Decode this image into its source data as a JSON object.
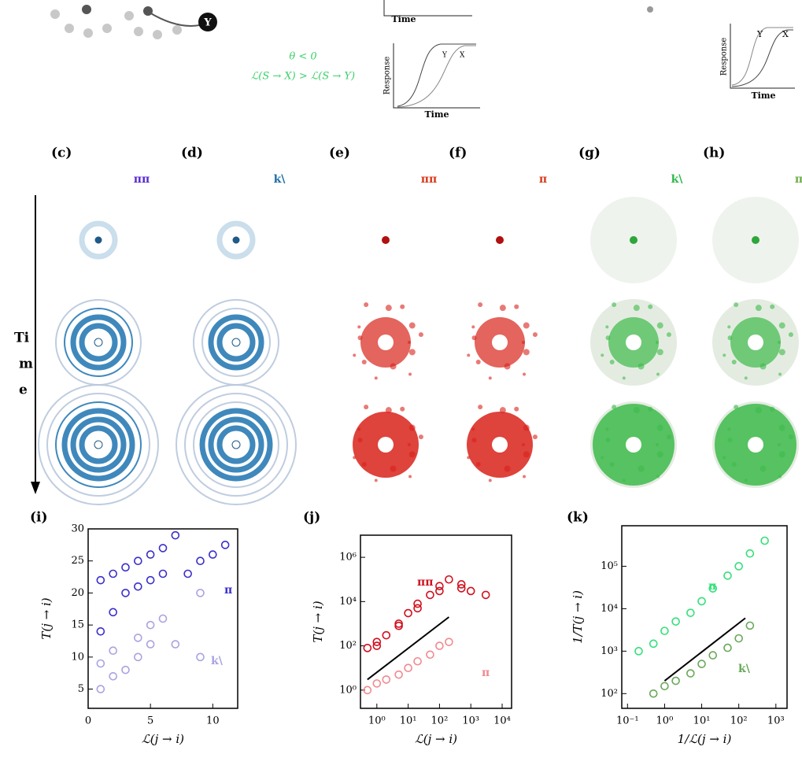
{
  "figure": {
    "top_condition": "θ < 0",
    "top_relation": "ℒ(S → X) > ℒ(S → Y)",
    "node_label": "Y",
    "inset_y_label": "Response",
    "inset_x_label": "Time",
    "curve_labels": [
      "Y",
      "X"
    ],
    "time_label": [
      "Ti",
      "m",
      "e"
    ],
    "panels": [
      {
        "label": "(c)",
        "glyph": "ππ",
        "color": "#5a2bd0"
      },
      {
        "label": "(d)",
        "glyph": "k\\",
        "color": "#1f6fa8"
      },
      {
        "label": "(e)",
        "glyph": "ππ",
        "color": "#d83a1e"
      },
      {
        "label": "(f)",
        "glyph": "π",
        "color": "#d83a1e"
      },
      {
        "label": "(g)",
        "glyph": "k\\",
        "color": "#2fb84a"
      },
      {
        "label": "(h)",
        "glyph": "π",
        "color": "#6cae4a"
      }
    ]
  },
  "chart_data": [
    {
      "type": "scatter",
      "panel_label": "(i)",
      "x_label": "ℒ(j → i)",
      "y_label": "T(j → i)",
      "xlim": [
        0,
        12
      ],
      "ylim": [
        2,
        30
      ],
      "xticks": [
        0,
        5,
        10
      ],
      "yticks": [
        5,
        10,
        15,
        20,
        25,
        30
      ],
      "series": [
        {
          "name": "π",
          "color": "#3b2fc9",
          "x": [
            1,
            1,
            2,
            2,
            3,
            3,
            4,
            4,
            5,
            5,
            6,
            6,
            7,
            8,
            9,
            10,
            11
          ],
          "values": [
            22,
            14,
            23,
            17,
            24,
            20,
            25,
            21,
            26,
            22,
            27,
            23,
            29,
            23,
            25,
            26,
            27.5
          ]
        },
        {
          "name": "k\\",
          "color": "#a9a3e0",
          "x": [
            1,
            1,
            2,
            2,
            3,
            4,
            4,
            5,
            5,
            6,
            7,
            9,
            9
          ],
          "values": [
            5,
            9,
            7,
            11,
            8,
            10,
            13,
            12,
            15,
            16,
            12,
            20,
            10
          ]
        }
      ]
    },
    {
      "type": "scatter",
      "panel_label": "(j)",
      "x_label": "ℒ(j → i)",
      "y_label": "T(j → i)",
      "log_x": true,
      "log_y": true,
      "xlim": [
        0.3,
        20000
      ],
      "ylim": [
        0.15,
        10000000
      ],
      "xticks": [
        {
          "value": 1,
          "label": "10⁰"
        },
        {
          "value": 10,
          "label": "10¹"
        },
        {
          "value": 100,
          "label": "10²"
        },
        {
          "value": 1000,
          "label": "10³"
        },
        {
          "value": 10000,
          "label": "10⁴"
        }
      ],
      "yticks": [
        {
          "value": 1,
          "label": "10⁰"
        },
        {
          "value": 100,
          "label": "10²"
        },
        {
          "value": 10000,
          "label": "10⁴"
        },
        {
          "value": 1000000,
          "label": "10⁶"
        }
      ],
      "series": [
        {
          "name": "ππ",
          "color": "#d0101e",
          "x": [
            1,
            2,
            5,
            10,
            20,
            50,
            100,
            200,
            500,
            1000,
            3000,
            0.5,
            1,
            5,
            20,
            100,
            500
          ],
          "values": [
            100,
            300,
            1000,
            3000,
            8000,
            20000,
            50000,
            100000,
            60000,
            30000,
            20000,
            80,
            150,
            800,
            5000,
            30000,
            40000
          ]
        },
        {
          "name": "π",
          "color": "#f08a90",
          "x": [
            0.5,
            1,
            2,
            5,
            10,
            20,
            50,
            100,
            200
          ],
          "values": [
            1,
            2,
            3,
            5,
            10,
            20,
            40,
            100,
            150
          ]
        }
      ],
      "fit": {
        "color": "#000000",
        "x": [
          0.5,
          200
        ],
        "values": [
          3,
          2000
        ]
      }
    },
    {
      "type": "scatter",
      "panel_label": "(k)",
      "x_label": "1/ℒ(j → i)",
      "y_label": "1/T(j → i)",
      "log_x": true,
      "log_y": true,
      "xlim": [
        0.07,
        2000
      ],
      "ylim": [
        45,
        900000
      ],
      "xticks": [
        {
          "value": 0.1,
          "label": "10⁻¹"
        },
        {
          "value": 1,
          "label": "10⁰"
        },
        {
          "value": 10,
          "label": "10¹"
        },
        {
          "value": 100,
          "label": "10²"
        },
        {
          "value": 1000,
          "label": "10³"
        }
      ],
      "yticks": [
        {
          "value": 100,
          "label": "10²"
        },
        {
          "value": 1000,
          "label": "10³"
        },
        {
          "value": 10000,
          "label": "10⁴"
        },
        {
          "value": 100000,
          "label": "10⁵"
        }
      ],
      "series": [
        {
          "name": "π",
          "color": "#34e07a",
          "x": [
            0.2,
            0.5,
            1,
            2,
            5,
            10,
            20,
            50,
            100,
            200,
            500
          ],
          "values": [
            1000,
            1500,
            3000,
            5000,
            8000,
            15000,
            30000,
            60000,
            100000,
            200000,
            400000
          ]
        },
        {
          "name": "k\\",
          "color": "#6aa85a",
          "x": [
            0.5,
            1,
            2,
            5,
            10,
            20,
            50,
            100,
            200
          ],
          "values": [
            100,
            150,
            200,
            300,
            500,
            800,
            1200,
            2000,
            4000
          ]
        }
      ],
      "fit": {
        "color": "#000000",
        "x": [
          1,
          150
        ],
        "values": [
          200,
          6000
        ]
      }
    }
  ]
}
